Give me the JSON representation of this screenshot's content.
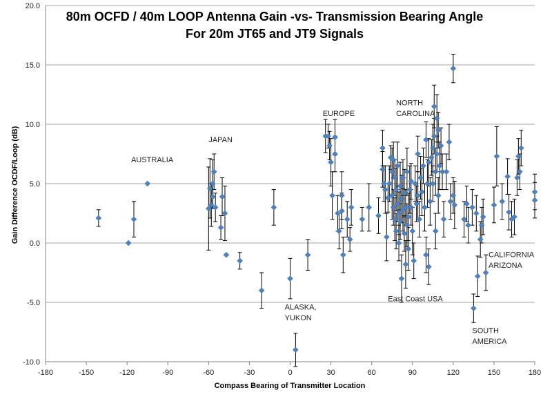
{
  "chart_data": {
    "type": "scatter",
    "title_line1": "80m OCFD / 40m LOOP Antenna Gain -vs- Transmission Bearing Angle",
    "title_line2": "For 20m JT65 and JT9 Signals",
    "xlabel": "Compass Bearing of Transmitter Location",
    "ylabel": "Gain Difference OCDF/Loop (dB)",
    "xlim": [
      -180,
      180
    ],
    "ylim": [
      -10,
      20
    ],
    "x_ticks": [
      "-180",
      "-150",
      "-120",
      "-90",
      "-60",
      "-30",
      "0",
      "30",
      "60",
      "90",
      "120",
      "150",
      "180"
    ],
    "y_ticks": [
      "-10.0",
      "-5.0",
      "0.0",
      "5.0",
      "10.0",
      "15.0",
      "20.0"
    ],
    "grid": "horizontal",
    "marker_color": "#4f81bd",
    "annotations": [
      {
        "text": "AUSTRALIA",
        "x": -117,
        "y": 6.8
      },
      {
        "text": "JAPAN",
        "x": -60,
        "y": 8.5
      },
      {
        "text": "EUROPE",
        "x": 24,
        "y": 10.7
      },
      {
        "text": "NORTH",
        "x": 78,
        "y": 11.6
      },
      {
        "text": "CAROLINA",
        "x": 78,
        "y": 10.7
      },
      {
        "text": "ALASKA,",
        "x": -4,
        "y": -5.6
      },
      {
        "text": "YUKON",
        "x": -4,
        "y": -6.5
      },
      {
        "text": "East Coast USA",
        "x": 72,
        "y": -4.9
      },
      {
        "text": "CALIFORNIA",
        "x": 146,
        "y": -1.2
      },
      {
        "text": "ARIZONA",
        "x": 146,
        "y": -2.1
      },
      {
        "text": "SOUTH",
        "x": 134,
        "y": -7.6
      },
      {
        "text": "AMERICA",
        "x": 134,
        "y": -8.5
      }
    ],
    "points": [
      {
        "x": -141,
        "y": 2.1,
        "e": 0.7
      },
      {
        "x": -119,
        "y": 0.0,
        "e": 0.0
      },
      {
        "x": -115,
        "y": 2.0,
        "e": 1.5
      },
      {
        "x": -105,
        "y": 5.0,
        "e": 0.0
      },
      {
        "x": -60,
        "y": 2.9,
        "e": 3.5
      },
      {
        "x": -59,
        "y": 4.6,
        "e": 2.5
      },
      {
        "x": -58,
        "y": 3.2,
        "e": 1.8
      },
      {
        "x": -57,
        "y": 5.0,
        "e": 2.0
      },
      {
        "x": -56,
        "y": 6.0,
        "e": 1.5
      },
      {
        "x": -57,
        "y": 3.9,
        "e": 1.0
      },
      {
        "x": -55,
        "y": 3.0,
        "e": 1.2
      },
      {
        "x": -51,
        "y": 1.3,
        "e": 1.0
      },
      {
        "x": -50,
        "y": 3.9,
        "e": 1.6
      },
      {
        "x": -48,
        "y": 2.5,
        "e": 2.3
      },
      {
        "x": -47,
        "y": -1.0,
        "e": 0.0
      },
      {
        "x": -37,
        "y": -1.5,
        "e": 0.7
      },
      {
        "x": -21,
        "y": -4.0,
        "e": 1.5
      },
      {
        "x": -12,
        "y": 3.0,
        "e": 1.5
      },
      {
        "x": 0,
        "y": -3.0,
        "e": 1.7
      },
      {
        "x": 4,
        "y": -9.0,
        "e": 1.4
      },
      {
        "x": 13,
        "y": -1.0,
        "e": 1.3
      },
      {
        "x": 26,
        "y": 9.0,
        "e": 1.4
      },
      {
        "x": 28,
        "y": 9.0,
        "e": 1.0
      },
      {
        "x": 29,
        "y": 8.2,
        "e": 1.2
      },
      {
        "x": 30,
        "y": 6.8,
        "e": 2.0
      },
      {
        "x": 31,
        "y": 4.0,
        "e": 2.0
      },
      {
        "x": 33,
        "y": 8.9,
        "e": 1.5
      },
      {
        "x": 33,
        "y": 7.5,
        "e": 1.5
      },
      {
        "x": 35,
        "y": 2.5,
        "e": 1.5
      },
      {
        "x": 36,
        "y": 1.0,
        "e": 1.5
      },
      {
        "x": 38,
        "y": 4.0,
        "e": 2.0
      },
      {
        "x": 38,
        "y": 2.7,
        "e": 1.5
      },
      {
        "x": 39,
        "y": -1.0,
        "e": 1.5
      },
      {
        "x": 42,
        "y": 2.0,
        "e": 1.5
      },
      {
        "x": 44,
        "y": 0.3,
        "e": 1.0
      },
      {
        "x": 45,
        "y": 3.0,
        "e": 1.5
      },
      {
        "x": 53,
        "y": 2.0,
        "e": 1.0
      },
      {
        "x": 58,
        "y": 3.0,
        "e": 2.0
      },
      {
        "x": 65,
        "y": 2.3,
        "e": 1.5
      },
      {
        "x": 68,
        "y": 8.0,
        "e": 1.5
      },
      {
        "x": 68,
        "y": 6.2,
        "e": 1.5
      },
      {
        "x": 69,
        "y": 5.0,
        "e": 1.5
      },
      {
        "x": 70,
        "y": 4.5,
        "e": 2.0
      },
      {
        "x": 71,
        "y": 0.5,
        "e": 2.0
      },
      {
        "x": 72,
        "y": 3.8,
        "e": 1.2
      },
      {
        "x": 73,
        "y": 5.0,
        "e": 1.5
      },
      {
        "x": 74,
        "y": 7.2,
        "e": 1.0
      },
      {
        "x": 75,
        "y": 6.0,
        "e": 2.0
      },
      {
        "x": 75,
        "y": 4.0,
        "e": 2.0
      },
      {
        "x": 76,
        "y": 3.0,
        "e": 1.5
      },
      {
        "x": 76,
        "y": 7.0,
        "e": 1.5
      },
      {
        "x": 77,
        "y": 2.0,
        "e": 1.8
      },
      {
        "x": 77,
        "y": 5.5,
        "e": 1.5
      },
      {
        "x": 78,
        "y": 4.5,
        "e": 1.8
      },
      {
        "x": 78,
        "y": 1.0,
        "e": 1.5
      },
      {
        "x": 79,
        "y": 3.3,
        "e": 1.5
      },
      {
        "x": 79,
        "y": 6.5,
        "e": 2.0
      },
      {
        "x": 80,
        "y": 2.5,
        "e": 1.8
      },
      {
        "x": 80,
        "y": 0.0,
        "e": 1.5
      },
      {
        "x": 81,
        "y": 4.8,
        "e": 2.0
      },
      {
        "x": 81,
        "y": 1.8,
        "e": 1.5
      },
      {
        "x": 82,
        "y": 3.7,
        "e": 2.0
      },
      {
        "x": 82,
        "y": -3.0,
        "e": 2.0
      },
      {
        "x": 83,
        "y": 5.5,
        "e": 1.5
      },
      {
        "x": 83,
        "y": 2.8,
        "e": 1.8
      },
      {
        "x": 84,
        "y": 0.8,
        "e": 1.5
      },
      {
        "x": 84,
        "y": 4.2,
        "e": 2.0
      },
      {
        "x": 85,
        "y": -1.8,
        "e": 2.0
      },
      {
        "x": 85,
        "y": 3.0,
        "e": 1.5
      },
      {
        "x": 86,
        "y": 6.0,
        "e": 2.0
      },
      {
        "x": 86,
        "y": 1.5,
        "e": 1.8
      },
      {
        "x": 87,
        "y": 2.2,
        "e": 2.0
      },
      {
        "x": 87,
        "y": -0.5,
        "e": 1.8
      },
      {
        "x": 88,
        "y": 4.5,
        "e": 2.0
      },
      {
        "x": 89,
        "y": 3.0,
        "e": 1.5
      },
      {
        "x": 89,
        "y": 5.2,
        "e": 1.5
      },
      {
        "x": 90,
        "y": 1.0,
        "e": 2.0
      },
      {
        "x": 91,
        "y": -1.5,
        "e": 1.5
      },
      {
        "x": 92,
        "y": 5.0,
        "e": 1.5
      },
      {
        "x": 93,
        "y": 3.3,
        "e": 1.5
      },
      {
        "x": 94,
        "y": 7.5,
        "e": 1.5
      },
      {
        "x": 94,
        "y": 4.0,
        "e": 2.0
      },
      {
        "x": 95,
        "y": 2.0,
        "e": 1.5
      },
      {
        "x": 96,
        "y": 5.5,
        "e": 1.8
      },
      {
        "x": 97,
        "y": 4.3,
        "e": 2.0
      },
      {
        "x": 98,
        "y": 6.5,
        "e": 1.5
      },
      {
        "x": 99,
        "y": 3.0,
        "e": 2.0
      },
      {
        "x": 100,
        "y": 8.7,
        "e": 1.5
      },
      {
        "x": 100,
        "y": -1.0,
        "e": 1.5
      },
      {
        "x": 101,
        "y": 5.0,
        "e": 2.0
      },
      {
        "x": 102,
        "y": 6.8,
        "e": 2.0
      },
      {
        "x": 102,
        "y": -2.0,
        "e": 1.5
      },
      {
        "x": 103,
        "y": 3.5,
        "e": 2.0
      },
      {
        "x": 104,
        "y": 7.2,
        "e": 1.5
      },
      {
        "x": 105,
        "y": 8.0,
        "e": 2.0
      },
      {
        "x": 105,
        "y": 5.0,
        "e": 1.5
      },
      {
        "x": 106,
        "y": 11.5,
        "e": 1.8
      },
      {
        "x": 106,
        "y": 9.0,
        "e": 1.5
      },
      {
        "x": 107,
        "y": 1.0,
        "e": 1.5
      },
      {
        "x": 107,
        "y": 6.0,
        "e": 2.0
      },
      {
        "x": 108,
        "y": 10.5,
        "e": 2.0
      },
      {
        "x": 108,
        "y": 7.5,
        "e": 1.5
      },
      {
        "x": 109,
        "y": 4.0,
        "e": 1.5
      },
      {
        "x": 109,
        "y": 9.5,
        "e": 1.5
      },
      {
        "x": 110,
        "y": 6.5,
        "e": 2.0
      },
      {
        "x": 111,
        "y": 8.2,
        "e": 1.5
      },
      {
        "x": 112,
        "y": 6.0,
        "e": 1.5
      },
      {
        "x": 113,
        "y": 2.0,
        "e": 1.5
      },
      {
        "x": 115,
        "y": 6.0,
        "e": 1.5
      },
      {
        "x": 117,
        "y": 8.5,
        "e": 1.5
      },
      {
        "x": 118,
        "y": 3.5,
        "e": 1.5
      },
      {
        "x": 120,
        "y": 14.7,
        "e": 1.2
      },
      {
        "x": 120,
        "y": 4.0,
        "e": 1.5
      },
      {
        "x": 121,
        "y": 3.2,
        "e": 2.0
      },
      {
        "x": 128,
        "y": 2.0,
        "e": 1.5
      },
      {
        "x": 130,
        "y": 3.3,
        "e": 1.5
      },
      {
        "x": 131,
        "y": 1.5,
        "e": 1.5
      },
      {
        "x": 134,
        "y": 3.0,
        "e": 1.5
      },
      {
        "x": 135,
        "y": -5.5,
        "e": 1.2
      },
      {
        "x": 137,
        "y": 2.5,
        "e": 1.5
      },
      {
        "x": 138,
        "y": -2.8,
        "e": 1.7
      },
      {
        "x": 140,
        "y": 0.3,
        "e": 1.5
      },
      {
        "x": 141,
        "y": 1.5,
        "e": 1.5
      },
      {
        "x": 142,
        "y": 2.2,
        "e": 1.5
      },
      {
        "x": 144,
        "y": -2.5,
        "e": 1.5
      },
      {
        "x": 150,
        "y": 3.2,
        "e": 1.5
      },
      {
        "x": 152,
        "y": 7.3,
        "e": 2.5
      },
      {
        "x": 156,
        "y": 3.5,
        "e": 1.5
      },
      {
        "x": 160,
        "y": 5.6,
        "e": 1.5
      },
      {
        "x": 161,
        "y": 2.6,
        "e": 1.5
      },
      {
        "x": 163,
        "y": 2.0,
        "e": 1.5
      },
      {
        "x": 165,
        "y": 2.2,
        "e": 1.5
      },
      {
        "x": 167,
        "y": 5.5,
        "e": 1.5
      },
      {
        "x": 168,
        "y": 7.3,
        "e": 1.5
      },
      {
        "x": 169,
        "y": 6.0,
        "e": 1.5
      },
      {
        "x": 170,
        "y": 8.0,
        "e": 1.5
      },
      {
        "x": 180,
        "y": 4.3,
        "e": 1.5
      },
      {
        "x": 180,
        "y": 3.6,
        "e": 1.5
      }
    ]
  }
}
